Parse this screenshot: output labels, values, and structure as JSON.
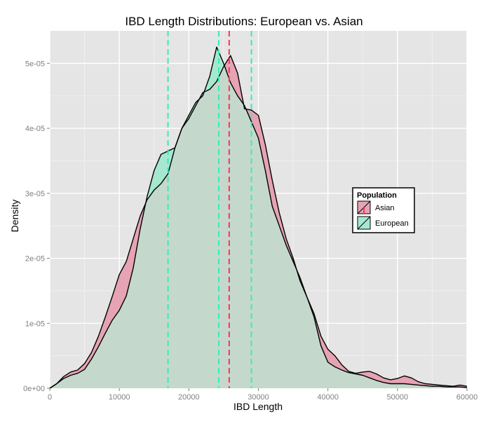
{
  "chart_data": {
    "type": "area",
    "title": "IBD Length Distributions: European vs. Asian",
    "xlabel": "IBD Length",
    "ylabel": "Density",
    "xlim": [
      0,
      60000
    ],
    "ylim": [
      0,
      5.5e-05
    ],
    "x_ticks": [
      0,
      10000,
      20000,
      30000,
      40000,
      50000,
      60000
    ],
    "x_tick_labels": [
      "0",
      "10000",
      "20000",
      "30000",
      "40000",
      "50000",
      "60000"
    ],
    "y_ticks": [
      0,
      1e-05,
      2e-05,
      3e-05,
      4e-05,
      5e-05
    ],
    "y_tick_labels": [
      "0e+00",
      "1e-05",
      "2e-05",
      "3e-05",
      "4e-05",
      "5e-05"
    ],
    "grid": true,
    "legend": {
      "title": "Population",
      "placement": "right",
      "entries": [
        {
          "name": "Asian",
          "color": "#f8766d"
        },
        {
          "name": "European",
          "color": "#00e5a0"
        }
      ]
    },
    "colors": {
      "panel": "#e5e5e5",
      "grid_major": "#ffffff",
      "grid_minor": "#f2f2f2",
      "asian_fill": "#e6a3b3",
      "european_fill": "#a6e8cf",
      "overlap_fill": "#c4d9cc",
      "asian_line": "#ff3355",
      "european_line": "#33eebb"
    },
    "series": [
      {
        "name": "Asian",
        "x": [
          0,
          1000,
          2000,
          3000,
          4000,
          5000,
          6000,
          7000,
          8000,
          9000,
          10000,
          11000,
          12000,
          13000,
          14000,
          15000,
          16000,
          17000,
          18000,
          19000,
          20000,
          21000,
          22000,
          23000,
          24000,
          25000,
          26000,
          27000,
          28000,
          29000,
          30000,
          31000,
          32000,
          33000,
          34000,
          35000,
          36000,
          37000,
          38000,
          39000,
          40000,
          41000,
          42000,
          43000,
          44000,
          45000,
          46000,
          47000,
          48000,
          49000,
          50000,
          51000,
          52000,
          53000,
          54000,
          55000,
          56000,
          57000,
          58000,
          59000,
          60000
        ],
        "y": [
          0.0,
          7e-07,
          1.8e-06,
          2.5e-06,
          2.8e-06,
          3.8e-06,
          5.5e-06,
          8e-06,
          1.1e-05,
          1.42e-05,
          1.75e-05,
          1.95e-05,
          2.3e-05,
          2.65e-05,
          2.9e-05,
          3.05e-05,
          3.15e-05,
          3.3e-05,
          3.7e-05,
          4e-05,
          4.15e-05,
          4.35e-05,
          4.55e-05,
          4.6e-05,
          4.72e-05,
          4.95e-05,
          5.12e-05,
          4.85e-05,
          4.3e-05,
          4.28e-05,
          4.2e-05,
          3.75e-05,
          3.2e-05,
          2.7e-05,
          2.3e-05,
          2e-05,
          1.65e-05,
          1.4e-05,
          1.15e-05,
          8e-06,
          6e-06,
          5e-06,
          3.6e-06,
          2.6e-06,
          2.3e-06,
          2.5e-06,
          2.6e-06,
          2.2e-06,
          1.6e-06,
          1.3e-06,
          1.5e-06,
          1.9e-06,
          1.6e-06,
          1e-06,
          7e-07,
          6e-07,
          5e-07,
          4e-07,
          3e-07,
          5e-07,
          3e-07
        ]
      },
      {
        "name": "European",
        "x": [
          0,
          1000,
          2000,
          3000,
          4000,
          5000,
          6000,
          7000,
          8000,
          9000,
          10000,
          11000,
          12000,
          13000,
          14000,
          15000,
          16000,
          17000,
          18000,
          19000,
          20000,
          21000,
          22000,
          23000,
          24000,
          25000,
          26000,
          27000,
          28000,
          29000,
          30000,
          31000,
          32000,
          33000,
          34000,
          35000,
          36000,
          37000,
          38000,
          39000,
          40000,
          41000,
          42000,
          43000,
          44000,
          45000,
          46000,
          47000,
          48000,
          49000,
          50000,
          51000,
          52000,
          53000,
          54000,
          55000,
          56000,
          57000,
          58000,
          59000,
          60000
        ],
        "y": [
          0.0,
          7e-07,
          1.5e-06,
          2e-06,
          2.3e-06,
          2.9e-06,
          4.5e-06,
          6.4e-06,
          8.5e-06,
          1.05e-05,
          1.2e-05,
          1.42e-05,
          1.85e-05,
          2.45e-05,
          2.95e-05,
          3.35e-05,
          3.6e-05,
          3.65e-05,
          3.7e-05,
          4e-05,
          4.2e-05,
          4.4e-05,
          4.5e-05,
          4.8e-05,
          5.25e-05,
          5e-05,
          4.7e-05,
          4.5e-05,
          4.35e-05,
          4.1e-05,
          3.85e-05,
          3.35e-05,
          2.8e-05,
          2.5e-05,
          2.2e-05,
          1.95e-05,
          1.7e-05,
          1.4e-05,
          1.1e-05,
          6.5e-06,
          4e-06,
          3.3e-06,
          2.8e-06,
          2.4e-06,
          2.2e-06,
          2e-06,
          1.6e-06,
          1.2e-06,
          9e-07,
          7e-07,
          7e-07,
          7e-07,
          6e-07,
          5e-07,
          4e-07,
          3e-07,
          3e-07,
          2e-07,
          2e-07,
          2e-07,
          1e-07
        ]
      }
    ],
    "vlines": [
      {
        "series": "European",
        "x": 17000
      },
      {
        "series": "European",
        "x": 24300
      },
      {
        "series": "European",
        "x": 29000
      },
      {
        "series": "Asian",
        "x": 25800
      }
    ]
  }
}
